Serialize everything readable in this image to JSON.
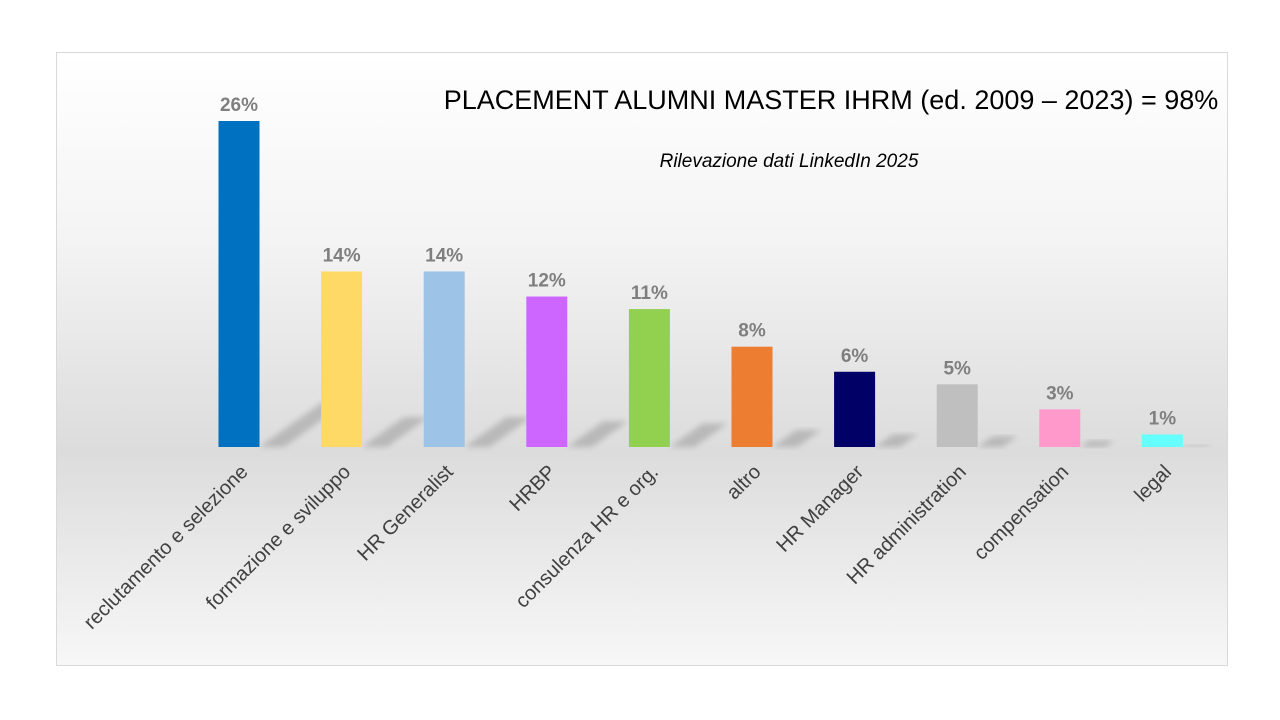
{
  "chart_data": {
    "type": "bar",
    "title": "PLACEMENT ALUMNI MASTER IHRM (ed. 2009 – 2023) = 98%",
    "subtitle": "Rilevazione dati LinkedIn 2025",
    "xlabel": "",
    "ylabel": "",
    "ylim": [
      0,
      26
    ],
    "grid": false,
    "legend": "none",
    "value_suffix": "%",
    "categories": [
      "reclutamento e selezione",
      "formazione e sviluppo",
      "HR Generalist",
      "HRBP",
      "consulenza HR e org.",
      "altro",
      "HR Manager",
      "HR administration",
      "compensation",
      "legal"
    ],
    "values": [
      26,
      14,
      14,
      12,
      11,
      8,
      6,
      5,
      3,
      1
    ],
    "colors": [
      "#0070C0",
      "#FFD966",
      "#9DC3E6",
      "#CC66FF",
      "#92D050",
      "#ED7D31",
      "#000066",
      "#BFBFBF",
      "#FF99CC",
      "#66FFFF"
    ]
  }
}
